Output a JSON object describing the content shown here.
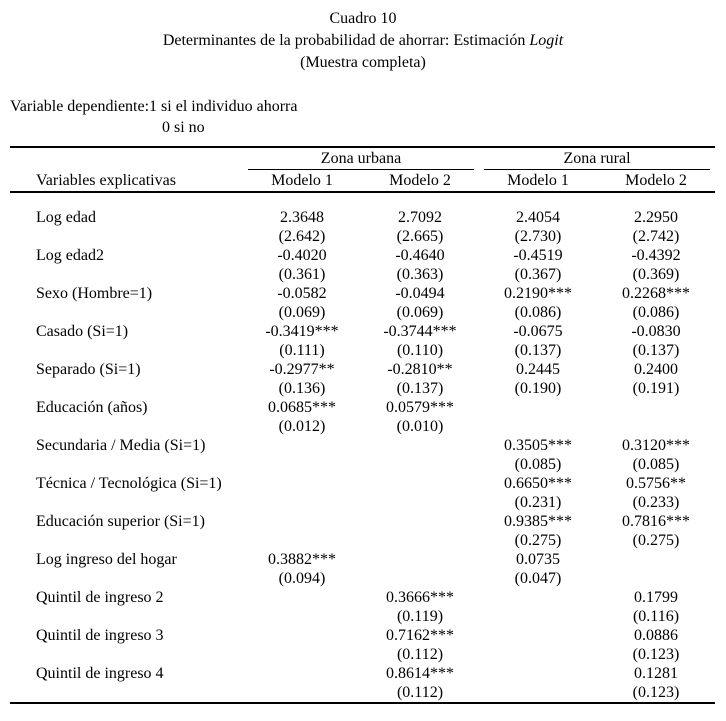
{
  "page": {
    "background": "#ffffff",
    "text_color": "#000000"
  },
  "title": {
    "line1": "Cuadro 10",
    "line2_prefix": "Determinantes de la probabilidad de ahorrar: Estimación ",
    "line2_italic": "Logit",
    "line3": "(Muestra completa)"
  },
  "dependent_variable": {
    "label": "Variable dependiente:",
    "line1": "1 si el individuo ahorra",
    "line2": "0 si no"
  },
  "table": {
    "group_headers": [
      "Zona urbana",
      "Zona rural"
    ],
    "stub_header": "Variables explicativas",
    "column_headers": [
      "Modelo 1",
      "Modelo 2",
      "Modelo 1",
      "Modelo 2"
    ],
    "rows": [
      {
        "label": "Log edad",
        "coef": [
          "2.3648",
          "2.7092",
          "2.4054",
          "2.2950"
        ],
        "se": [
          "(2.642)",
          "(2.665)",
          "(2.730)",
          "(2.742)"
        ]
      },
      {
        "label": "Log edad2",
        "coef": [
          "-0.4020",
          "-0.4640",
          "-0.4519",
          "-0.4392"
        ],
        "se": [
          "(0.361)",
          "(0.363)",
          "(0.367)",
          "(0.369)"
        ]
      },
      {
        "label": "Sexo (Hombre=1)",
        "coef": [
          "-0.0582",
          "-0.0494",
          "0.2190***",
          "0.2268***"
        ],
        "se": [
          "(0.069)",
          "(0.069)",
          "(0.086)",
          "(0.086)"
        ]
      },
      {
        "label": "Casado (Si=1)",
        "coef": [
          "-0.3419***",
          "-0.3744***",
          "-0.0675",
          "-0.0830"
        ],
        "se": [
          "(0.111)",
          "(0.110)",
          "(0.137)",
          "(0.137)"
        ]
      },
      {
        "label": "Separado (Si=1)",
        "coef": [
          "-0.2977**",
          "-0.2810**",
          "0.2445",
          "0.2400"
        ],
        "se": [
          "(0.136)",
          "(0.137)",
          "(0.190)",
          "(0.191)"
        ]
      },
      {
        "label": "Educación (años)",
        "coef": [
          "0.0685***",
          "0.0579***",
          "",
          ""
        ],
        "se": [
          "(0.012)",
          "(0.010)",
          "",
          ""
        ]
      },
      {
        "label": "Secundaria / Media (Si=1)",
        "coef": [
          "",
          "",
          "0.3505***",
          "0.3120***"
        ],
        "se": [
          "",
          "",
          "(0.085)",
          "(0.085)"
        ]
      },
      {
        "label": "Técnica / Tecnológica (Si=1)",
        "coef": [
          "",
          "",
          "0.6650***",
          "0.5756**"
        ],
        "se": [
          "",
          "",
          "(0.231)",
          "(0.233)"
        ]
      },
      {
        "label": "Educación superior (Si=1)",
        "coef": [
          "",
          "",
          "0.9385***",
          "0.7816***"
        ],
        "se": [
          "",
          "",
          "(0.275)",
          "(0.275)"
        ]
      },
      {
        "label": "Log ingreso del hogar",
        "coef": [
          "0.3882***",
          "",
          "0.0735",
          ""
        ],
        "se": [
          "(0.094)",
          "",
          "(0.047)",
          ""
        ]
      },
      {
        "label": "Quintil de ingreso 2",
        "coef": [
          "",
          "0.3666***",
          "",
          "0.1799"
        ],
        "se": [
          "",
          "(0.119)",
          "",
          "(0.116)"
        ]
      },
      {
        "label": "Quintil de ingreso 3",
        "coef": [
          "",
          "0.7162***",
          "",
          "0.0886"
        ],
        "se": [
          "",
          "(0.112)",
          "",
          "(0.123)"
        ]
      },
      {
        "label": "Quintil de ingreso 4",
        "coef": [
          "",
          "0.8614***",
          "",
          "0.1281"
        ],
        "se": [
          "",
          "(0.112)",
          "",
          "(0.123)"
        ]
      }
    ]
  }
}
